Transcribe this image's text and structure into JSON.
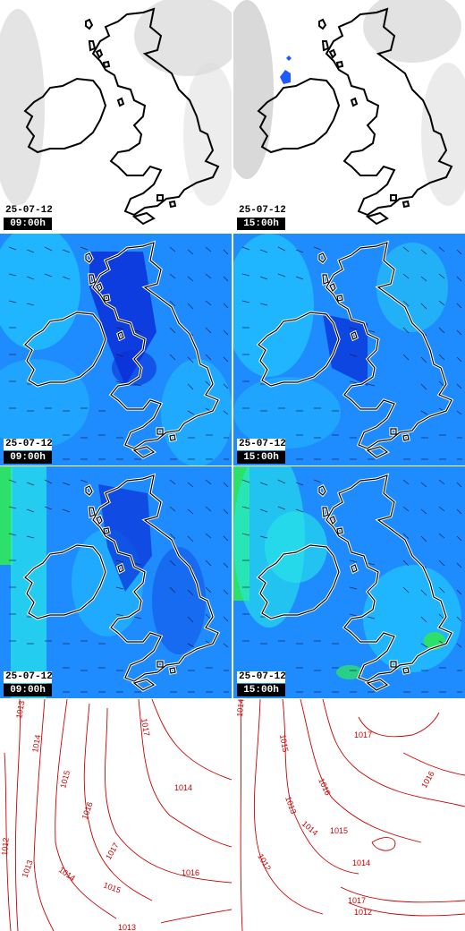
{
  "map_grid": {
    "rows": [
      {
        "field": "cloud",
        "panels": [
          {
            "date": "25-07-12",
            "time": "09:00h"
          },
          {
            "date": "25-07-12",
            "time": "15:00h"
          }
        ]
      },
      {
        "field": "wind-low",
        "panels": [
          {
            "date": "25-07-12",
            "time": "09:00h"
          },
          {
            "date": "25-07-12",
            "time": "15:00h"
          }
        ]
      },
      {
        "field": "wind-high",
        "panels": [
          {
            "date": "25-07-12",
            "time": "09:00h"
          },
          {
            "date": "25-07-12",
            "time": "15:00h"
          }
        ]
      },
      {
        "field": "pressure",
        "panels": [
          {
            "isobars": [
              "1013",
              "1014",
              "1015",
              "1016",
              "1017",
              "1012",
              "1013",
              "1014",
              "1015",
              "1016",
              "1013",
              "1014",
              "1017"
            ]
          },
          {
            "isobars": [
              "1014",
              "1015",
              "1017",
              "1016",
              "1013",
              "1014",
              "1015",
              "1016",
              "1012",
              "1014",
              "1017",
              "1012"
            ]
          }
        ]
      }
    ]
  },
  "colors": {
    "coastline": "#000000",
    "coast_halo": "#ffffff",
    "cloud_bg": "#ffffff",
    "cloud_gray": "#d4d4d4",
    "precip_blue": "#1e5aff",
    "wind_bg": "#1e8cff",
    "wind_light": "#1fc8ff",
    "wind_cyan": "#27e8e8",
    "wind_dark": "#0a2fd8",
    "wind_green": "#2ce06a",
    "isobar": "#cc0000"
  }
}
